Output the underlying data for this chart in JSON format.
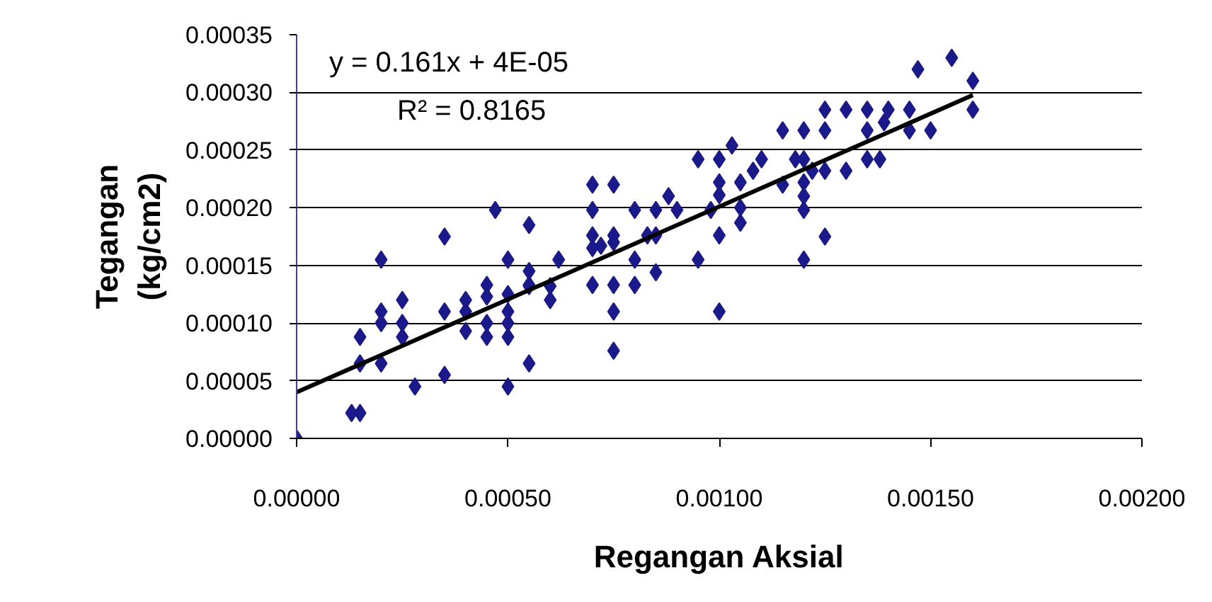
{
  "chart_data": {
    "type": "scatter",
    "xlabel": "Regangan Aksial",
    "ylabel": "Tegangan (kg/cm2)",
    "xlim": [
      0,
      0.002
    ],
    "ylim": [
      0,
      0.00035
    ],
    "xticks": [
      {
        "value": 0,
        "label": "0.00000"
      },
      {
        "value": 0.0005,
        "label": "0.00050"
      },
      {
        "value": 0.001,
        "label": "0.00100"
      },
      {
        "value": 0.0015,
        "label": "0.00150"
      },
      {
        "value": 0.002,
        "label": "0.00200"
      }
    ],
    "yticks": [
      {
        "value": 0,
        "label": "0.00000"
      },
      {
        "value": 5e-05,
        "label": "0.00005"
      },
      {
        "value": 0.0001,
        "label": "0.00010"
      },
      {
        "value": 0.00015,
        "label": "0.00015"
      },
      {
        "value": 0.0002,
        "label": "0.00020"
      },
      {
        "value": 0.00025,
        "label": "0.00025"
      },
      {
        "value": 0.0003,
        "label": "0.00030"
      },
      {
        "value": 0.00035,
        "label": "0.00035"
      }
    ],
    "grid": "y",
    "marker": "diamond",
    "annotations": [
      "y = 0.161x + 4E-05",
      "R² = 0.8165"
    ],
    "series": [
      {
        "color": "#1a1a8c",
        "x": [
          0,
          0.00013,
          0.00015,
          0.00015,
          0.00015,
          0.0002,
          0.0002,
          0.0002,
          0.0002,
          0.00025,
          0.00025,
          0.00025,
          0.00028,
          0.00035,
          0.00035,
          0.00035,
          0.0004,
          0.0004,
          0.0004,
          0.00045,
          0.00045,
          0.00045,
          0.00045,
          0.00047,
          0.0005,
          0.0005,
          0.0005,
          0.0005,
          0.0005,
          0.0005,
          0.00055,
          0.00055,
          0.00055,
          0.00055,
          0.00055,
          0.0006,
          0.0006,
          0.00062,
          0.0007,
          0.0007,
          0.0007,
          0.0007,
          0.0007,
          0.00072,
          0.00075,
          0.00075,
          0.00075,
          0.00075,
          0.00075,
          0.00075,
          0.0008,
          0.0008,
          0.0008,
          0.00083,
          0.00085,
          0.00085,
          0.00085,
          0.00088,
          0.0009,
          0.00095,
          0.00095,
          0.00098,
          0.001,
          0.001,
          0.001,
          0.001,
          0.001,
          0.00103,
          0.00105,
          0.00105,
          0.00105,
          0.00108,
          0.0011,
          0.00115,
          0.00115,
          0.00118,
          0.0012,
          0.0012,
          0.0012,
          0.0012,
          0.0012,
          0.0012,
          0.00122,
          0.00125,
          0.00125,
          0.00125,
          0.00125,
          0.0013,
          0.0013,
          0.00135,
          0.00135,
          0.00135,
          0.00138,
          0.00139,
          0.0014,
          0.00145,
          0.00145,
          0.00147,
          0.0015,
          0.00155,
          0.0016,
          0.0016
        ],
        "values": [
          0,
          2.2e-05,
          2.2e-05,
          6.5e-05,
          8.8e-05,
          6.5e-05,
          0.00011,
          0.000155,
          0.0001,
          8.8e-05,
          0.0001,
          0.00012,
          4.5e-05,
          5.5e-05,
          0.00011,
          0.000175,
          0.00011,
          0.00012,
          9.3e-05,
          8.8e-05,
          0.0001,
          0.000123,
          0.000133,
          0.000198,
          4.5e-05,
          8.8e-05,
          0.0001,
          0.00011,
          0.000125,
          0.000155,
          6.5e-05,
          0.000133,
          0.000145,
          0.000185,
          0.000132,
          0.00012,
          0.000132,
          0.000155,
          0.00022,
          0.000198,
          0.000176,
          0.000133,
          0.000165,
          0.000167,
          0.00022,
          0.000176,
          0.000133,
          0.00011,
          7.6e-05,
          0.00017,
          0.000198,
          0.000155,
          0.000133,
          0.000176,
          0.000198,
          0.000176,
          0.000144,
          0.00021,
          0.000198,
          0.000242,
          0.000155,
          0.000198,
          0.000242,
          0.000222,
          0.000211,
          0.000176,
          0.00011,
          0.000254,
          0.000222,
          0.0002,
          0.000187,
          0.000232,
          0.000242,
          0.000267,
          0.00022,
          0.000242,
          0.000267,
          0.000242,
          0.000222,
          0.00021,
          0.000198,
          0.000155,
          0.000232,
          0.000285,
          0.000267,
          0.000232,
          0.000175,
          0.000285,
          0.000232,
          0.000285,
          0.000267,
          0.000242,
          0.000242,
          0.000274,
          0.000285,
          0.000285,
          0.000267,
          0.00032,
          0.000267,
          0.00033,
          0.00031,
          0.000285
        ]
      },
      {
        "type": "line",
        "marker": "none",
        "color": "#000000",
        "x": [
          0,
          0.0016
        ],
        "values": [
          4e-05,
          0.0002976
        ]
      }
    ]
  }
}
